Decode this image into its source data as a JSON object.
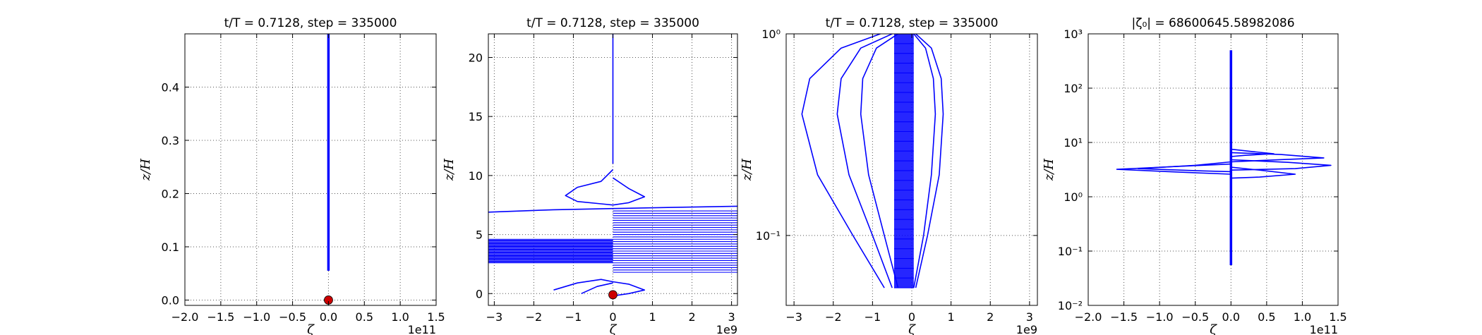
{
  "chart_data": [
    {
      "type": "line",
      "title": "t/T = 0.7128, step = 335000",
      "xlabel": "ζ",
      "ylabel": "z/H",
      "x_offset_label": "1e11",
      "xlim": [
        -2.0,
        1.5
      ],
      "ylim": [
        -0.01,
        0.5
      ],
      "xticks": [
        -2.0,
        -1.5,
        -1.0,
        -0.5,
        0.0,
        0.5,
        1.0,
        1.5
      ],
      "xtick_labels": [
        "−2.0",
        "−1.5",
        "−1.0",
        "−0.5",
        "0.0",
        "0.5",
        "1.0",
        "1.5"
      ],
      "yticks": [
        0.0,
        0.1,
        0.2,
        0.3,
        0.4
      ],
      "ytick_labels": [
        "0.0",
        "0.1",
        "0.2",
        "0.3",
        "0.4"
      ],
      "grid": true,
      "line_color": "#0000ff",
      "marker_color": "#cc0000",
      "series": [
        {
          "x": [
            0.0,
            0.0,
            0.0,
            0.0,
            0.0
          ],
          "y": [
            0.055,
            0.15,
            0.3,
            0.45,
            0.5
          ]
        }
      ],
      "marker": {
        "x": 0.0,
        "y": 0.0
      }
    },
    {
      "type": "line",
      "title": "t/T = 0.7128, step = 335000",
      "xlabel": "ζ",
      "ylabel": "z/H",
      "x_offset_label": "1e9",
      "xlim": [
        -3.15,
        3.15
      ],
      "ylim": [
        -1.0,
        22.0
      ],
      "xticks": [
        -3,
        -2,
        -1,
        0,
        1,
        2,
        3
      ],
      "xtick_labels": [
        "−3",
        "−2",
        "−1",
        "0",
        "1",
        "2",
        "3"
      ],
      "yticks": [
        0,
        5,
        10,
        15,
        20
      ],
      "ytick_labels": [
        "0",
        "5",
        "10",
        "15",
        "20"
      ],
      "grid": true,
      "line_color": "#0000ff",
      "marker_color": "#cc0000",
      "series": [
        {
          "x": [
            0.0,
            0.0,
            0.0,
            0.0
          ],
          "y": [
            11.0,
            15.0,
            20.0,
            22.0
          ]
        },
        {
          "x": [
            0.0,
            -0.3,
            -0.9,
            -1.2,
            -0.9,
            -0.3,
            0.0
          ],
          "y": [
            10.5,
            9.5,
            9.0,
            8.3,
            7.8,
            7.6,
            7.5
          ]
        },
        {
          "x": [
            0.0,
            0.4,
            0.8,
            0.4,
            0.0
          ],
          "y": [
            9.8,
            8.9,
            8.2,
            7.7,
            7.5
          ]
        },
        {
          "x": [
            -3.15,
            -1.5,
            0.0,
            1.5,
            3.15
          ],
          "y": [
            6.9,
            7.1,
            7.2,
            7.3,
            7.4
          ]
        },
        {
          "x": [
            -1.5,
            -0.9,
            -0.3,
            0.0
          ],
          "y": [
            0.3,
            0.9,
            1.2,
            1.0
          ]
        },
        {
          "x": [
            0.0,
            0.4,
            0.8,
            0.4,
            0.0
          ],
          "y": [
            1.0,
            0.8,
            0.3,
            0.0,
            -0.2
          ]
        },
        {
          "x": [
            -0.8,
            -0.4,
            0.0
          ],
          "y": [
            0.0,
            0.6,
            0.9
          ]
        }
      ],
      "bands": [
        {
          "x_from": -3.15,
          "x_to": 0.0,
          "y_from": 2.6,
          "y_to": 4.6
        },
        {
          "x_from": 0.0,
          "x_to": 3.15,
          "y_from": 1.8,
          "y_to": 7.0
        }
      ],
      "marker": {
        "x": 0.0,
        "y": -0.1
      }
    },
    {
      "type": "line",
      "title": "t/T = 0.7128, step = 335000",
      "xlabel": "ζ",
      "ylabel": "z/H",
      "x_offset_label": "1e9",
      "xlim": [
        -3.2,
        3.2
      ],
      "ylim": [
        0.045,
        1.0
      ],
      "yscale": "log",
      "xticks": [
        -3,
        -2,
        -1,
        0,
        1,
        2,
        3
      ],
      "xtick_labels": [
        "−3",
        "−2",
        "−1",
        "0",
        "1",
        "2",
        "3"
      ],
      "ytick_labels": [
        "10⁻¹",
        "10⁰"
      ],
      "yticks": [
        0.1,
        1.0
      ],
      "grid": true,
      "line_color": "#0000ff",
      "series": [
        {
          "x": [
            -0.7,
            -1.5,
            -2.4,
            -2.8,
            -2.6,
            -1.8,
            -0.8
          ],
          "y": [
            0.055,
            0.1,
            0.2,
            0.4,
            0.6,
            0.85,
            1.0
          ]
        },
        {
          "x": [
            -0.5,
            -1.0,
            -1.6,
            -1.9,
            -1.8,
            -1.3,
            -0.5
          ],
          "y": [
            0.055,
            0.1,
            0.2,
            0.4,
            0.6,
            0.85,
            1.0
          ]
        },
        {
          "x": [
            -0.35,
            -0.7,
            -1.1,
            -1.3,
            -1.25,
            -0.9,
            -0.35
          ],
          "y": [
            0.055,
            0.1,
            0.2,
            0.4,
            0.6,
            0.85,
            1.0
          ]
        },
        {
          "x": [
            0.1,
            0.4,
            0.7,
            0.8,
            0.75,
            0.5,
            0.1
          ],
          "y": [
            0.055,
            0.1,
            0.2,
            0.4,
            0.6,
            0.85,
            1.0
          ]
        },
        {
          "x": [
            0.05,
            0.3,
            0.5,
            0.6,
            0.55,
            0.35,
            0.05
          ],
          "y": [
            0.055,
            0.1,
            0.2,
            0.4,
            0.6,
            0.85,
            1.0
          ]
        }
      ],
      "band": {
        "x_from": -0.45,
        "x_to": 0.05,
        "y_from": 0.055,
        "y_to": 1.0
      }
    },
    {
      "type": "line",
      "title": "|ζ₀| = 68600645.58982086",
      "xlabel": "ζ",
      "ylabel": "z/H",
      "x_offset_label": "1e11",
      "xlim": [
        -2.0,
        1.5
      ],
      "ylim": [
        0.01,
        1000
      ],
      "yscale": "log",
      "xticks": [
        -2.0,
        -1.5,
        -1.0,
        -0.5,
        0.0,
        0.5,
        1.0,
        1.5
      ],
      "xtick_labels": [
        "−2.0",
        "−1.5",
        "−1.0",
        "−0.5",
        "0.0",
        "0.5",
        "1.0",
        "1.5"
      ],
      "yticks": [
        0.01,
        0.1,
        1,
        10,
        100,
        1000
      ],
      "ytick_labels": [
        "10⁻²",
        "10⁻¹",
        "10⁰",
        "10¹",
        "10²",
        "10³"
      ],
      "grid": true,
      "line_color": "#0000ff",
      "series": [
        {
          "x": [
            0.0,
            0.0,
            0.0,
            0.0,
            0.0,
            0.0
          ],
          "y": [
            0.055,
            0.3,
            1.0,
            5.0,
            60,
            500
          ]
        },
        {
          "x": [
            0.0,
            -0.8,
            -1.6,
            -0.6,
            0.0
          ],
          "y": [
            4.0,
            3.6,
            3.2,
            2.8,
            2.6
          ]
        },
        {
          "x": [
            0.0,
            -0.5,
            -1.3,
            -0.4,
            0.0
          ],
          "y": [
            4.4,
            3.8,
            3.3,
            3.0,
            2.9
          ]
        },
        {
          "x": [
            0.0,
            0.7,
            1.3,
            0.5,
            0.0
          ],
          "y": [
            6.5,
            6.0,
            5.2,
            4.7,
            4.4
          ]
        },
        {
          "x": [
            0.0,
            0.8,
            1.4,
            0.9,
            0.0
          ],
          "y": [
            4.8,
            4.3,
            3.8,
            3.3,
            3.1
          ]
        },
        {
          "x": [
            0.0,
            0.4,
            0.9,
            0.4,
            0.0
          ],
          "y": [
            3.5,
            3.1,
            2.6,
            2.3,
            2.2
          ]
        },
        {
          "x": [
            0.0,
            0.3,
            0.6,
            0.2,
            0.0
          ],
          "y": [
            7.5,
            6.8,
            6.2,
            5.8,
            5.5
          ]
        }
      ]
    }
  ]
}
